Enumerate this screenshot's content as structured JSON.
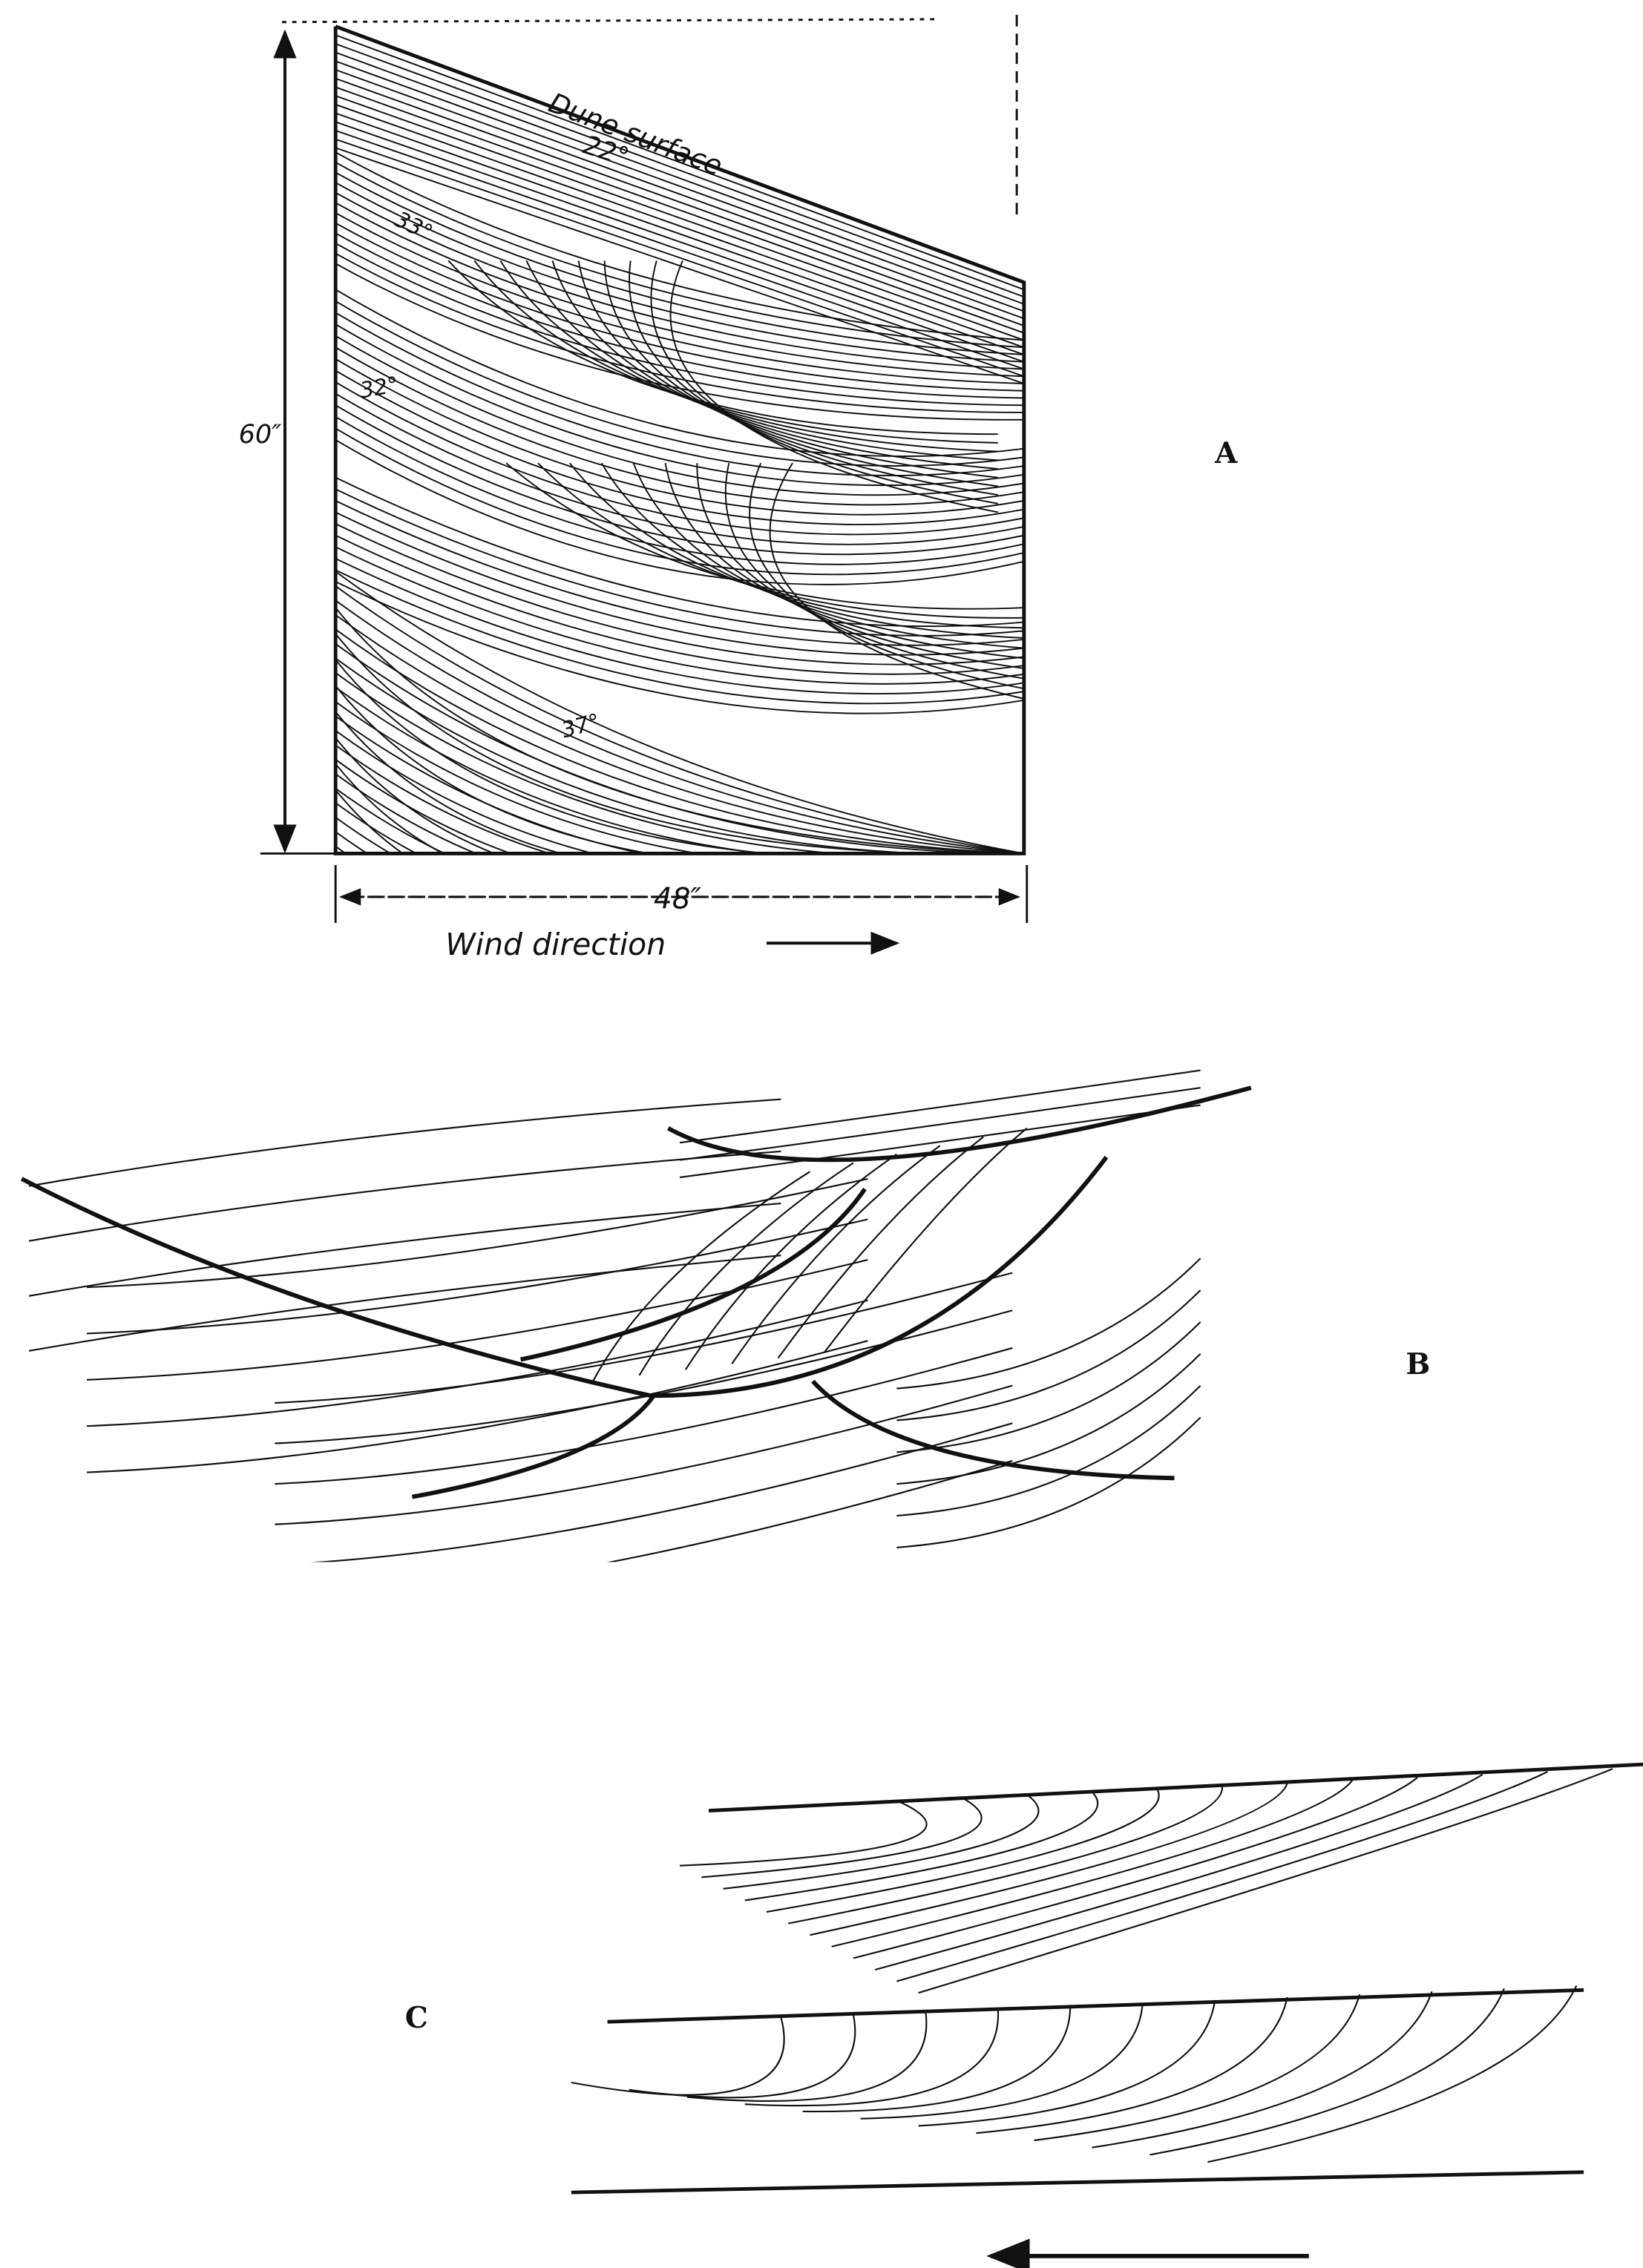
{
  "panel_a": {
    "label": "A",
    "annotation": "Dune surface",
    "angles": [
      "22°",
      "33°",
      "32°",
      "37°"
    ],
    "height": "60″",
    "width": "48″",
    "wind": "Wind direction"
  },
  "panel_b": {
    "label": "B"
  },
  "panel_c": {
    "label": "C"
  }
}
